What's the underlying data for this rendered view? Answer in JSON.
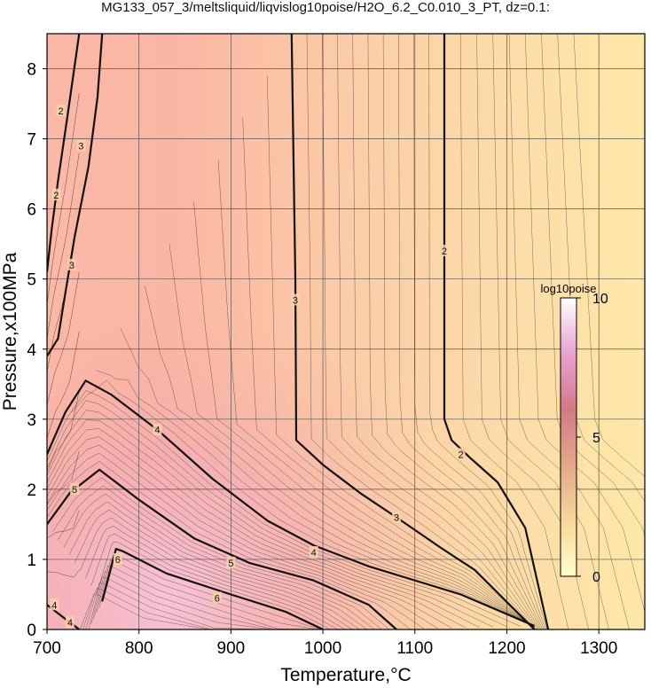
{
  "chart_data": {
    "type": "contour",
    "title": "MG133_057_3/meltsliquid/liqvislog10poise/H2O_6.2_C0.010_3_PT, dz=0.1:",
    "xlabel": "Temperature,°C",
    "ylabel": "Pressure,x100MPa",
    "xlim": [
      700,
      1350
    ],
    "ylim": [
      0,
      8.5
    ],
    "xticks": [
      700,
      800,
      900,
      1000,
      1100,
      1200,
      1300
    ],
    "yticks": [
      0,
      1,
      2,
      3,
      4,
      5,
      6,
      7,
      8
    ],
    "grid": true,
    "colorbar": {
      "label": "log10poise",
      "range": [
        0,
        10
      ],
      "ticks": [
        0,
        5,
        10
      ],
      "colors": [
        "#ffffcc",
        "#f5c89b",
        "#e0a07a",
        "#d07080",
        "#e8a0d0",
        "#ffffff"
      ]
    },
    "contour_interval": 0.1,
    "major_contours": [
      {
        "level": 2,
        "label": "2",
        "points": [
          [
            1132,
            8.5
          ],
          [
            1132,
            3.0
          ],
          [
            1140,
            2.7
          ],
          [
            1160,
            2.45
          ],
          [
            1190,
            2.1
          ],
          [
            1220,
            1.45
          ],
          [
            1245,
            0
          ]
        ]
      },
      {
        "level": 3,
        "label": "3",
        "points": [
          [
            966,
            8.5
          ],
          [
            970,
            5.0
          ],
          [
            971,
            2.7
          ],
          [
            1000,
            2.35
          ],
          [
            1040,
            1.95
          ],
          [
            1080,
            1.6
          ],
          [
            1130,
            1.15
          ],
          [
            1165,
            0.85
          ],
          [
            1230,
            0
          ]
        ]
      },
      {
        "level": 4,
        "label": "4",
        "points": [
          [
            700,
            2.5
          ],
          [
            720,
            3.1
          ],
          [
            742,
            3.55
          ],
          [
            770,
            3.35
          ],
          [
            820,
            2.85
          ],
          [
            880,
            2.15
          ],
          [
            940,
            1.55
          ],
          [
            990,
            1.2
          ],
          [
            1050,
            0.9
          ],
          [
            1150,
            0.5
          ],
          [
            1230,
            0.05
          ]
        ]
      },
      {
        "level": 5,
        "label": "5",
        "points": [
          [
            700,
            1.5
          ],
          [
            725,
            1.95
          ],
          [
            757,
            2.28
          ],
          [
            800,
            1.85
          ],
          [
            860,
            1.3
          ],
          [
            920,
            0.95
          ],
          [
            990,
            0.7
          ],
          [
            1050,
            0.35
          ],
          [
            1080,
            0
          ]
        ]
      },
      {
        "level": 6,
        "label": "6",
        "points": [
          [
            760,
            0.4
          ],
          [
            775,
            1.15
          ],
          [
            782,
            1.12
          ],
          [
            830,
            0.8
          ],
          [
            900,
            0.5
          ],
          [
            960,
            0.25
          ],
          [
            1000,
            0
          ]
        ]
      },
      {
        "level": 3,
        "label": "3",
        "points": [
          [
            700,
            3.9
          ],
          [
            712,
            4.15
          ],
          [
            720,
            4.8
          ],
          [
            730,
            5.6
          ],
          [
            745,
            6.6
          ],
          [
            755,
            7.6
          ],
          [
            760,
            8.5
          ]
        ]
      },
      {
        "level": 2,
        "label": "2",
        "points": [
          [
            700,
            5.1
          ],
          [
            705,
            5.7
          ],
          [
            712,
            6.4
          ],
          [
            722,
            7.3
          ],
          [
            735,
            8.5
          ]
        ]
      },
      {
        "level": 4,
        "label": "4",
        "points": [
          [
            700,
            0.35
          ],
          [
            710,
            0.25
          ],
          [
            730,
            0.05
          ],
          [
            735,
            0
          ]
        ]
      }
    ],
    "contour_labels": [
      {
        "text": "2",
        "at": [
          1132,
          5.4
        ]
      },
      {
        "text": "3",
        "at": [
          970,
          4.7
        ]
      },
      {
        "text": "2",
        "at": [
          1150,
          2.5
        ]
      },
      {
        "text": "3",
        "at": [
          1080,
          1.6
        ]
      },
      {
        "text": "4",
        "at": [
          820,
          2.85
        ]
      },
      {
        "text": "4",
        "at": [
          990,
          1.1
        ]
      },
      {
        "text": "5",
        "at": [
          730,
          2.0
        ]
      },
      {
        "text": "5",
        "at": [
          900,
          0.95
        ]
      },
      {
        "text": "6",
        "at": [
          777,
          1.0
        ]
      },
      {
        "text": "6",
        "at": [
          885,
          0.45
        ]
      },
      {
        "text": "3",
        "at": [
          737,
          6.9
        ]
      },
      {
        "text": "2",
        "at": [
          710,
          6.2
        ]
      },
      {
        "text": "2",
        "at": [
          715,
          7.4
        ]
      },
      {
        "text": "3",
        "at": [
          727,
          5.2
        ]
      },
      {
        "text": "4",
        "at": [
          708,
          0.35
        ]
      },
      {
        "text": "4",
        "at": [
          725,
          0.1
        ]
      }
    ]
  }
}
